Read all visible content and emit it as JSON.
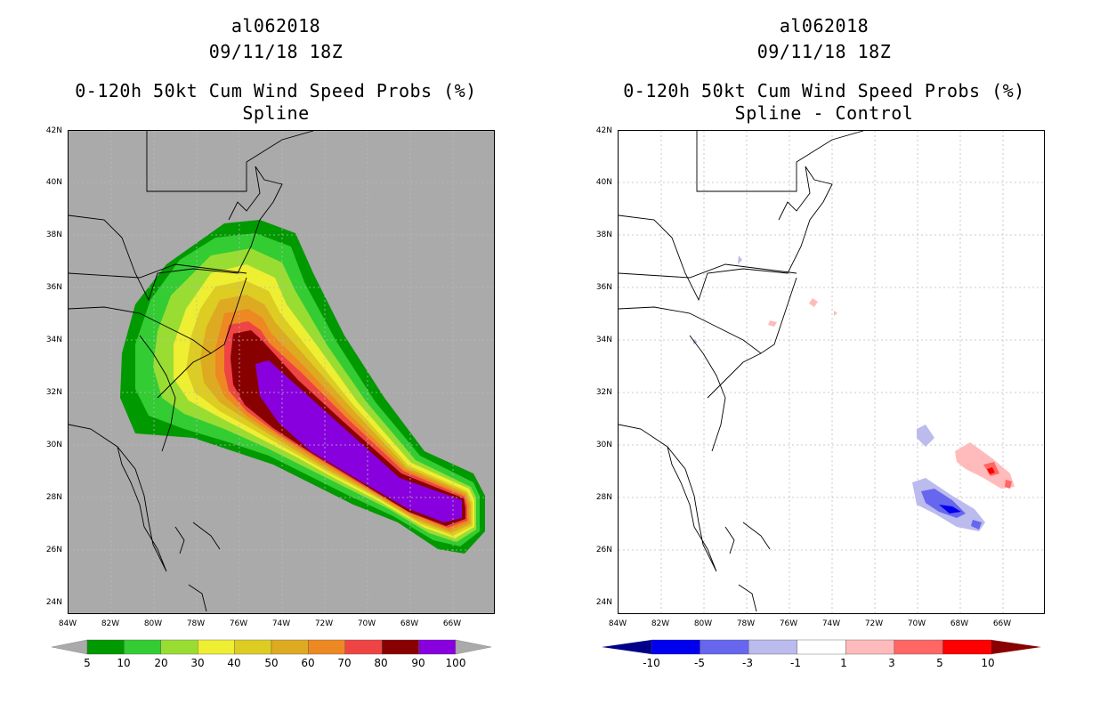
{
  "left_panel": {
    "storm_id": "al062018",
    "datetime": "09/11/18 18Z",
    "product": "0-120h 50kt Cum Wind Speed Probs (%)",
    "subtitle": "Spline"
  },
  "right_panel": {
    "storm_id": "al062018",
    "datetime": "09/11/18 18Z",
    "product": "0-120h 50kt Cum Wind Speed Probs (%)",
    "subtitle": "Spline - Control"
  },
  "lat_labels": [
    "42N",
    "40N",
    "38N",
    "36N",
    "34N",
    "32N",
    "30N",
    "28N",
    "26N",
    "24N"
  ],
  "lon_labels": [
    "84W",
    "82W",
    "80W",
    "78W",
    "76W",
    "74W",
    "72W",
    "70W",
    "68W",
    "66W"
  ],
  "left_colorbar": {
    "labels": [
      "5",
      "10",
      "20",
      "30",
      "40",
      "50",
      "60",
      "70",
      "80",
      "90",
      "100"
    ],
    "colors": [
      "#009900",
      "#33cc33",
      "#99dd33",
      "#eeee33",
      "#ddcc22",
      "#ddaa22",
      "#ee8822",
      "#ee4444",
      "#880000",
      "#8800dd"
    ]
  },
  "right_colorbar": {
    "labels": [
      "-10",
      "-5",
      "-3",
      "-1",
      "1",
      "3",
      "5",
      "10"
    ],
    "colors": [
      "#000088",
      "#0000ee",
      "#6666ee",
      "#bbbbee",
      "#ffffff",
      "#ffbbbb",
      "#ff6666",
      "#ff0000",
      "#880000"
    ]
  },
  "colors": {
    "background_left": "#aaaaaa",
    "background_right": "#ffffff",
    "grid": "#bbbbbb"
  }
}
